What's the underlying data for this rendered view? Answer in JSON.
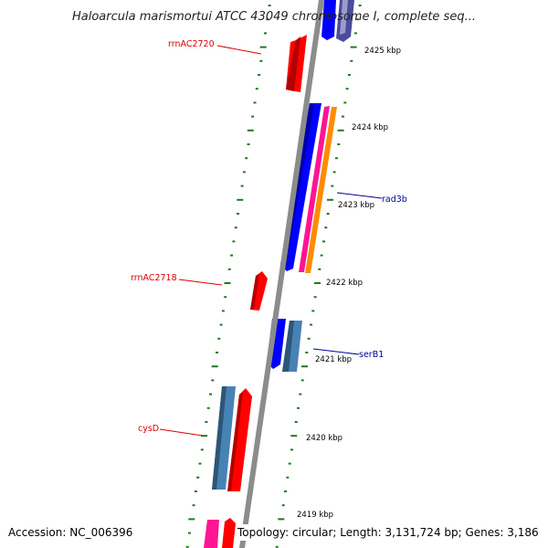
{
  "title": "Haloarcula marismortui ATCC 43049 chromosome I, complete seq...",
  "footer": {
    "accession": "Accession: NC_006396",
    "summary": "Topology: circular; Length: 3,131,724 bp; Genes: 3,186"
  },
  "colors": {
    "backbone": "#8c8c8c",
    "tick": "#1f7a1f",
    "rna_label": "#dd0000",
    "cds_label": "#000099",
    "red": "#ff0000",
    "blue": "#0000ff",
    "steelblue": "#4682b4",
    "pink": "#ff1493",
    "orange": "#ff8c00",
    "slate": "#4b4b9b"
  },
  "ticks": [
    {
      "label": "2425 kbp"
    },
    {
      "label": "2424 kbp"
    },
    {
      "label": "2423 kbp"
    },
    {
      "label": "2422 kbp"
    },
    {
      "label": "2421 kbp"
    },
    {
      "label": "2420 kbp"
    },
    {
      "label": "2419 kbp"
    }
  ],
  "gene_labels": [
    {
      "text": "rrnAC2720",
      "kind": "rna"
    },
    {
      "text": "rad3b",
      "kind": "cds"
    },
    {
      "text": "rrnAC2718",
      "kind": "rna"
    },
    {
      "text": "serB1",
      "kind": "cds"
    },
    {
      "text": "cysD",
      "kind": "rna"
    }
  ]
}
